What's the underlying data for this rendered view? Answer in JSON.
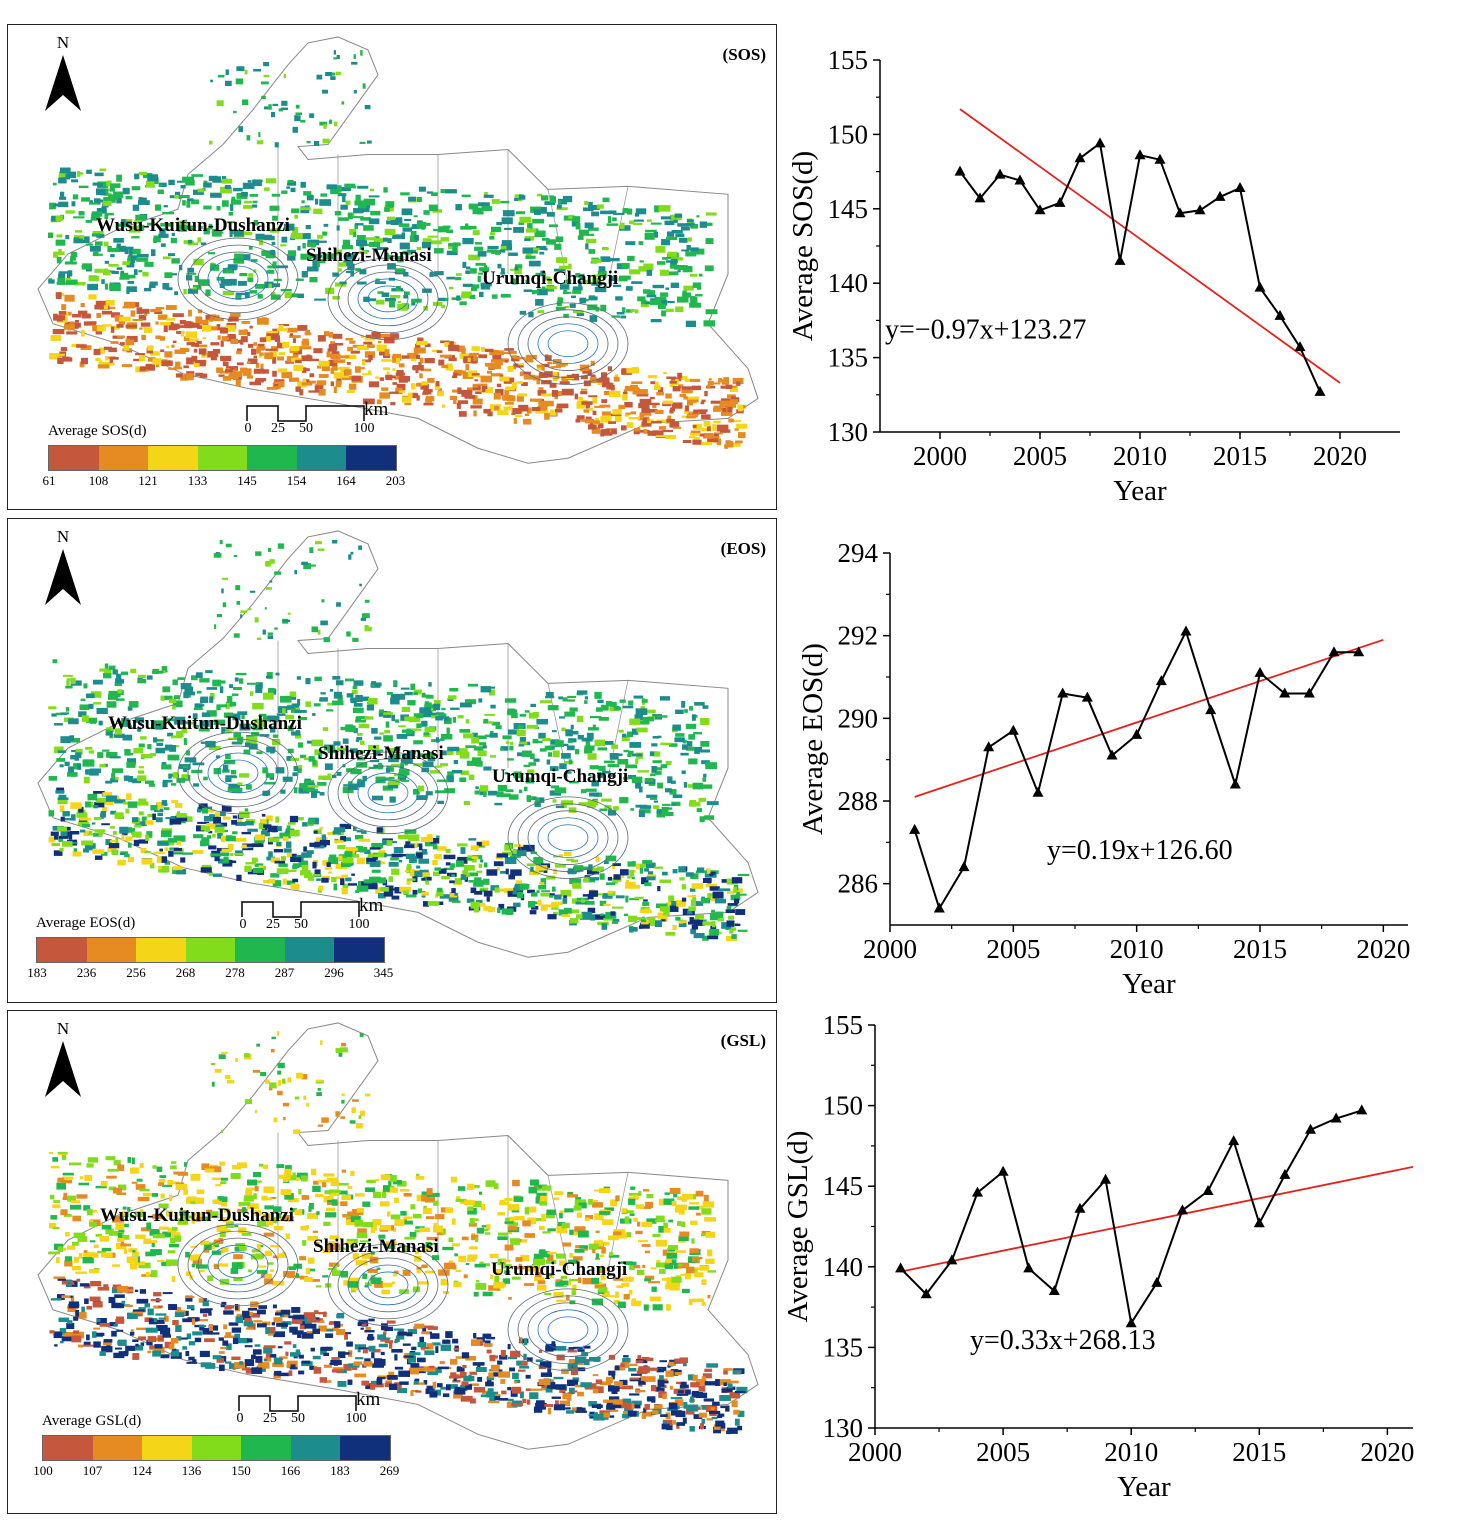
{
  "maps": [
    {
      "id": "sos",
      "tag": "(SOS)",
      "north": "N",
      "cities": [
        "Wusu-Kuitun-Dushanzi",
        "Shihezi-Manasi",
        "Urumqi-Changji"
      ],
      "scale": {
        "unit": "km",
        "ticks": [
          "0",
          "25",
          "50",
          "100"
        ]
      },
      "legend": {
        "title": "Average SOS(d)",
        "breaks": [
          "61",
          "108",
          "121",
          "133",
          "145",
          "154",
          "164",
          "203"
        ],
        "colors": [
          "#c5573c",
          "#e68a22",
          "#f4d517",
          "#82dc1c",
          "#20b84e",
          "#1c8c8c",
          "#10307c"
        ]
      }
    },
    {
      "id": "eos",
      "tag": "(EOS)",
      "north": "N",
      "cities": [
        "Wusu-Kuitun-Dushanzi",
        "Shihezi-Manasi",
        "Urumqi-Changji"
      ],
      "scale": {
        "unit": "km",
        "ticks": [
          "0",
          "25",
          "50",
          "100"
        ]
      },
      "legend": {
        "title": "Average EOS(d)",
        "breaks": [
          "183",
          "236",
          "256",
          "268",
          "278",
          "287",
          "296",
          "345"
        ],
        "colors": [
          "#c5573c",
          "#e68a22",
          "#f4d517",
          "#82dc1c",
          "#20b84e",
          "#1c8c8c",
          "#10307c"
        ]
      }
    },
    {
      "id": "gsl",
      "tag": "(GSL)",
      "north": "N",
      "cities": [
        "Wusu-Kuitun-Dushanzi",
        "Shihezi-Manasi",
        "Urumqi-Changji"
      ],
      "scale": {
        "unit": "km",
        "ticks": [
          "0",
          "25",
          "50",
          "100"
        ]
      },
      "legend": {
        "title": "Average GSL(d)",
        "breaks": [
          "100",
          "107",
          "124",
          "136",
          "150",
          "166",
          "183",
          "269"
        ],
        "colors": [
          "#c5573c",
          "#e68a22",
          "#f4d517",
          "#82dc1c",
          "#20b84e",
          "#1c8c8c",
          "#10307c"
        ]
      }
    }
  ],
  "chart_data": [
    {
      "id": "sos",
      "type": "line",
      "xlabel": "Year",
      "ylabel": "Average SOS(d)",
      "xlim": [
        1997,
        2023
      ],
      "ylim": [
        130,
        155
      ],
      "xticks": [
        2000,
        2005,
        2010,
        2015,
        2020
      ],
      "yticks": [
        130,
        135,
        140,
        145,
        150,
        155
      ],
      "x": [
        2001,
        2002,
        2003,
        2004,
        2005,
        2006,
        2007,
        2008,
        2009,
        2010,
        2011,
        2012,
        2013,
        2014,
        2015,
        2016,
        2017,
        2018,
        2019
      ],
      "y": [
        147.5,
        145.7,
        147.3,
        146.9,
        144.9,
        145.4,
        148.4,
        149.4,
        141.5,
        148.6,
        148.3,
        144.7,
        144.9,
        145.8,
        146.4,
        139.7,
        137.8,
        135.7,
        132.7
      ],
      "trend": {
        "x": [
          2001,
          2020
        ],
        "y": [
          151.7,
          133.3
        ]
      },
      "equation": "y=−0.97x+123.27",
      "line_color": "#000000",
      "trend_color": "#e8201c"
    },
    {
      "id": "eos",
      "type": "line",
      "xlabel": "Year",
      "ylabel": "Average  EOS(d)",
      "xlim": [
        2000,
        2021
      ],
      "ylim": [
        285,
        294
      ],
      "xticks": [
        2000,
        2005,
        2010,
        2015,
        2020
      ],
      "yticks": [
        286,
        288,
        290,
        292,
        294
      ],
      "x": [
        2001,
        2002,
        2003,
        2004,
        2005,
        2006,
        2007,
        2008,
        2009,
        2010,
        2011,
        2012,
        2013,
        2014,
        2015,
        2016,
        2017,
        2018,
        2019
      ],
      "y": [
        287.3,
        285.4,
        286.4,
        289.3,
        289.7,
        288.2,
        290.6,
        290.5,
        289.1,
        289.6,
        290.9,
        292.1,
        290.2,
        288.4,
        291.1,
        290.6,
        290.6,
        291.6,
        291.6
      ],
      "trend": {
        "x": [
          2001,
          2020
        ],
        "y": [
          288.1,
          291.9
        ]
      },
      "equation": "y=0.19x+126.60",
      "line_color": "#000000",
      "trend_color": "#e8201c"
    },
    {
      "id": "gsl",
      "type": "line",
      "xlabel": "Year",
      "ylabel": "Average GSL(d)",
      "xlim": [
        2000,
        2021
      ],
      "ylim": [
        130,
        155
      ],
      "xticks": [
        2000,
        2005,
        2010,
        2015,
        2020
      ],
      "yticks": [
        130,
        135,
        140,
        145,
        150,
        155
      ],
      "x": [
        2001,
        2002,
        2003,
        2004,
        2005,
        2006,
        2007,
        2008,
        2009,
        2010,
        2011,
        2012,
        2013,
        2014,
        2015,
        2016,
        2017,
        2018,
        2019
      ],
      "y": [
        139.9,
        138.3,
        140.4,
        144.6,
        145.9,
        139.9,
        138.5,
        143.6,
        145.4,
        136.5,
        139.0,
        143.5,
        144.7,
        147.8,
        142.7,
        145.7,
        148.5,
        149.2,
        149.7
      ],
      "trend": {
        "x": [
          2001,
          2021
        ],
        "y": [
          139.7,
          146.2
        ]
      },
      "equation": "y=0.33x+268.13",
      "line_color": "#000000",
      "trend_color": "#e8201c"
    }
  ]
}
